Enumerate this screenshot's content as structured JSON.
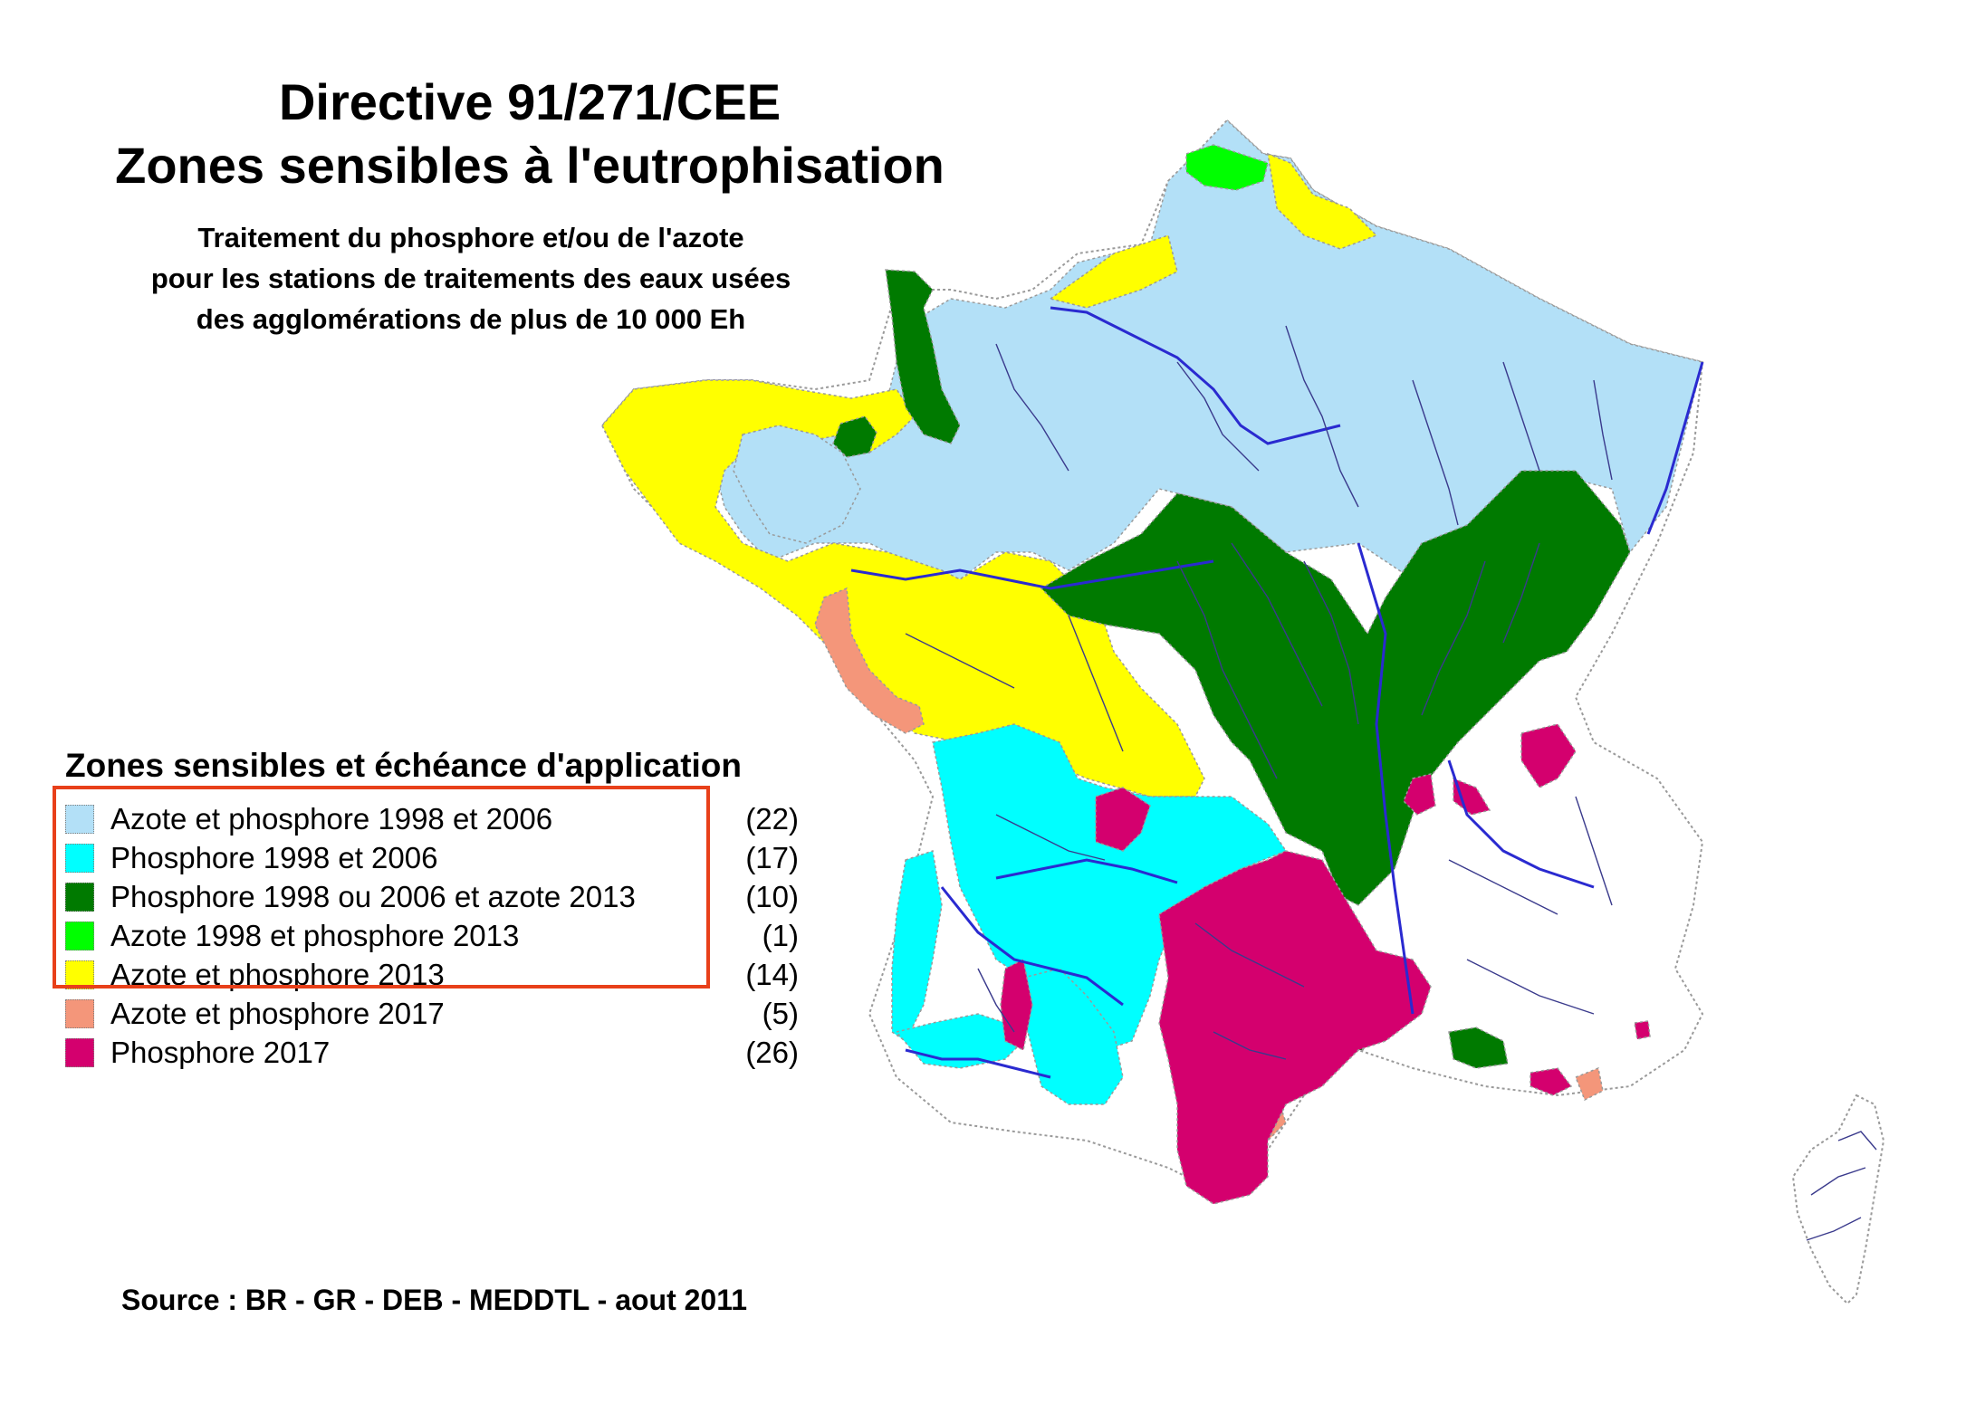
{
  "title": {
    "line1": "Directive 91/271/CEE",
    "line2": "Zones sensibles à l'eutrophisation"
  },
  "subtitle": {
    "line1": "Traitement du phosphore et/ou de l'azote",
    "line2": "pour les stations de traitements des eaux usées",
    "line3": "des agglomérations de plus de 10 000 Eh"
  },
  "legend": {
    "title": "Zones sensibles et échéance d'application",
    "items": [
      {
        "label": "Azote et phosphore 1998 et 2006",
        "count": "(22)",
        "color": "#b3e0f7"
      },
      {
        "label": "Phosphore 1998 et 2006",
        "count": "(17)",
        "color": "#00ffff"
      },
      {
        "label": "Phosphore 1998 ou 2006 et azote 2013",
        "count": "(10)",
        "color": "#007a00"
      },
      {
        "label": "Azote 1998 et phosphore 2013",
        "count": "(1)",
        "color": "#00ff00"
      },
      {
        "label": "Azote et phosphore 2013",
        "count": "(14)",
        "color": "#ffff00"
      },
      {
        "label": "Azote et phosphore 2017",
        "count": "(5)",
        "color": "#f4967a"
      },
      {
        "label": "Phosphore 2017",
        "count": "(26)",
        "color": "#d4006e"
      }
    ]
  },
  "source": "Source : BR - GR - DEB - MEDDTL - aout 2011",
  "colors": {
    "river": "#2a2ad0",
    "stream": "#3a3a8c",
    "outline": "#9a9a9a",
    "highlight": "#e8401a"
  }
}
